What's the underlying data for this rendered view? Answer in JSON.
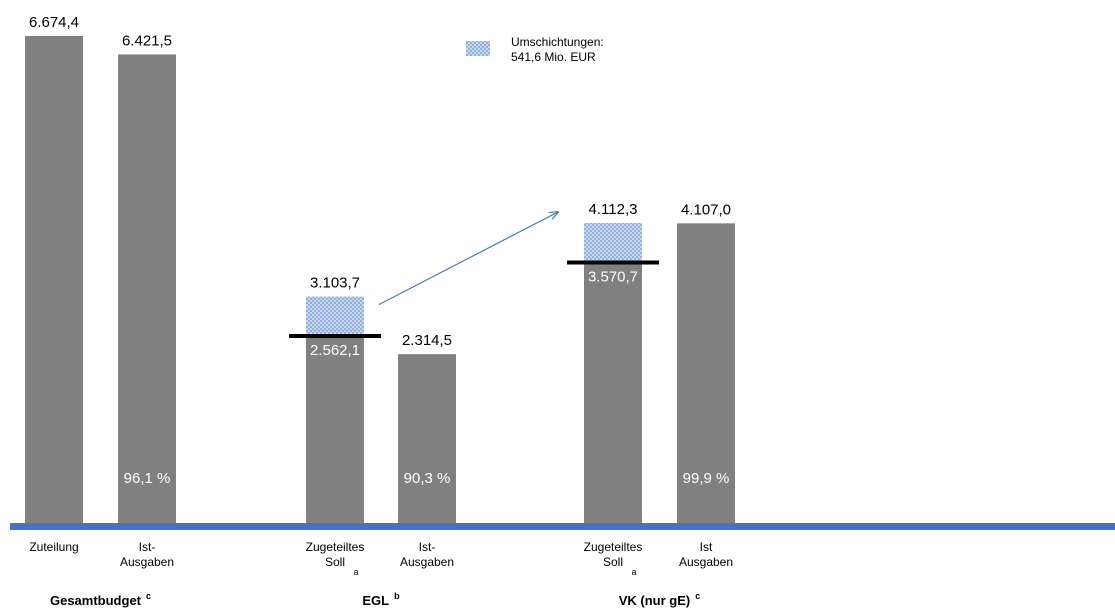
{
  "chart_data": {
    "type": "bar",
    "colors": {
      "bar": "#808080",
      "shift": "#a9c2e6",
      "axis": "#4472c4",
      "arrow": "#4a78b8",
      "marker": "#000000"
    },
    "groups": [
      {
        "name": "Gesamtbudget",
        "sup": "c",
        "bars": [
          {
            "label_lines": [
              "Zuteilung"
            ],
            "value": 6674.4,
            "value_label": "6.674,4"
          },
          {
            "label_lines": [
              "Ist-",
              "Ausgaben"
            ],
            "value": 6421.5,
            "value_label": "6.421,5",
            "percent_label": "96,1 %"
          }
        ]
      },
      {
        "name": "EGL",
        "sup": "b",
        "bars": [
          {
            "label_lines": [
              "Zugeteiltes",
              "Soll"
            ],
            "label_sup": "a",
            "value": 3103.7,
            "value_label": "3.103,7",
            "base_value": 2562.1,
            "base_label": "2.562,1"
          },
          {
            "label_lines": [
              "Ist-",
              "Ausgaben"
            ],
            "value": 2314.5,
            "value_label": "2.314,5",
            "percent_label": "90,3 %"
          }
        ]
      },
      {
        "name": "VK (nur gE)",
        "sup": "c",
        "bars": [
          {
            "label_lines": [
              "Zugeteiltes",
              "Soll"
            ],
            "label_sup": "a",
            "value": 4112.3,
            "value_label": "4.112,3",
            "base_value": 3570.7,
            "base_label": "3.570,7"
          },
          {
            "label_lines": [
              "Ist",
              "Ausgaben"
            ],
            "value": 4107.0,
            "value_label": "4.107,0",
            "percent_label": "99,9 %"
          }
        ]
      }
    ],
    "legend": {
      "lines": [
        "Umschichtungen:",
        "541,6 Mio. EUR"
      ],
      "placement": "top-center"
    },
    "arrow": {
      "from": "EGL Zugeteiltes Soll",
      "to": "VK (nur gE) Zugeteiltes Soll"
    },
    "ylim": [
      0,
      6674.4
    ],
    "grid": false
  }
}
